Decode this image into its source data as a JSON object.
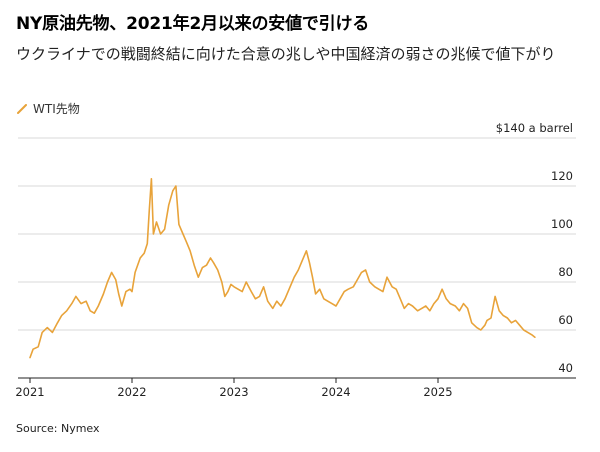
{
  "title": "NY原油先物、2021年2月以来の安値で引ける",
  "subtitle": "ウクライナでの戦闘終結に向けた合意の兆しや中国経済の弱さの兆候で値下がり",
  "legend": {
    "label": "WTI先物"
  },
  "source": "Source: Nymex",
  "colors": {
    "series": "#e8a33a",
    "grid": "#d9d9d9",
    "axis": "#222222"
  },
  "chart_data": {
    "type": "line",
    "title": "NY原油先物、2021年2月以来の安値で引ける",
    "xlabel": "",
    "ylabel": "$ a barrel",
    "y_unit_label": "$140 a barrel",
    "xlim": [
      2021.0,
      2026.0
    ],
    "ylim": [
      40,
      140
    ],
    "y_ticks": [
      40,
      60,
      80,
      100,
      120,
      140
    ],
    "y_tick_labels": [
      "40",
      "60",
      "80",
      "100",
      "120",
      "$140 a barrel"
    ],
    "x_ticks": [
      2021,
      2022,
      2023,
      2024,
      2025
    ],
    "x_tick_labels": [
      "2021",
      "2022",
      "2023",
      "2024",
      "2025"
    ],
    "series": [
      {
        "name": "WTI先物",
        "x": [
          2021.0,
          2021.03,
          2021.08,
          2021.12,
          2021.17,
          2021.22,
          2021.27,
          2021.31,
          2021.36,
          2021.41,
          2021.45,
          2021.5,
          2021.55,
          2021.59,
          2021.63,
          2021.67,
          2021.72,
          2021.76,
          2021.8,
          2021.84,
          2021.87,
          2021.9,
          2021.94,
          2021.98,
          2022.0,
          2022.03,
          2022.08,
          2022.12,
          2022.15,
          2022.17,
          2022.19,
          2022.21,
          2022.24,
          2022.28,
          2022.32,
          2022.36,
          2022.4,
          2022.43,
          2022.46,
          2022.5,
          2022.53,
          2022.57,
          2022.61,
          2022.65,
          2022.69,
          2022.73,
          2022.77,
          2022.8,
          2022.84,
          2022.88,
          2022.91,
          2022.94,
          2022.97,
          2023.0,
          2023.04,
          2023.08,
          2023.12,
          2023.17,
          2023.21,
          2023.25,
          2023.29,
          2023.33,
          2023.38,
          2023.42,
          2023.46,
          2023.5,
          2023.55,
          2023.59,
          2023.63,
          2023.67,
          2023.71,
          2023.74,
          2023.77,
          2023.8,
          2023.84,
          2023.88,
          2023.92,
          2023.96,
          2024.0,
          2024.04,
          2024.08,
          2024.12,
          2024.17,
          2024.21,
          2024.25,
          2024.29,
          2024.33,
          2024.38,
          2024.42,
          2024.46,
          2024.5,
          2024.55,
          2024.59,
          2024.63,
          2024.67,
          2024.71,
          2024.75,
          2024.8,
          2024.84,
          2024.88,
          2024.92,
          2024.96,
          2025.0,
          2025.04,
          2025.08,
          2025.12,
          2025.17,
          2025.21,
          2025.25,
          2025.29,
          2025.33,
          2025.38,
          2025.42,
          2025.46,
          2025.48,
          2025.52,
          2025.56,
          2025.6,
          2025.64,
          2025.68,
          2025.72,
          2025.76,
          2025.8,
          2025.84,
          2025.88,
          2025.92,
          2025.95
        ],
        "values": [
          48.5,
          52,
          53,
          59,
          61,
          59,
          63,
          66,
          68,
          71,
          74,
          71,
          72,
          68,
          67,
          70,
          75,
          80,
          84,
          81,
          75,
          70,
          76,
          77,
          76,
          84,
          90,
          92,
          96,
          110,
          123,
          100,
          105,
          100,
          102,
          112,
          118,
          120,
          104,
          100,
          97,
          93,
          87,
          82,
          86,
          87,
          90,
          88,
          85,
          80,
          74,
          76,
          79,
          78,
          77,
          76,
          80,
          76,
          73,
          74,
          78,
          72,
          69,
          72,
          70,
          73,
          78,
          82,
          85,
          89,
          93,
          88,
          82,
          75,
          77,
          73,
          72,
          71,
          70,
          73,
          76,
          77,
          78,
          81,
          84,
          85,
          80,
          78,
          77,
          76,
          82,
          78,
          77,
          73,
          69,
          71,
          70,
          68,
          69,
          70,
          68,
          71,
          73,
          77,
          73,
          71,
          70,
          68,
          71,
          69,
          63,
          61,
          60,
          62,
          64,
          65,
          74,
          68,
          66,
          65,
          63,
          64,
          62,
          60,
          59,
          58,
          57
        ]
      }
    ]
  }
}
